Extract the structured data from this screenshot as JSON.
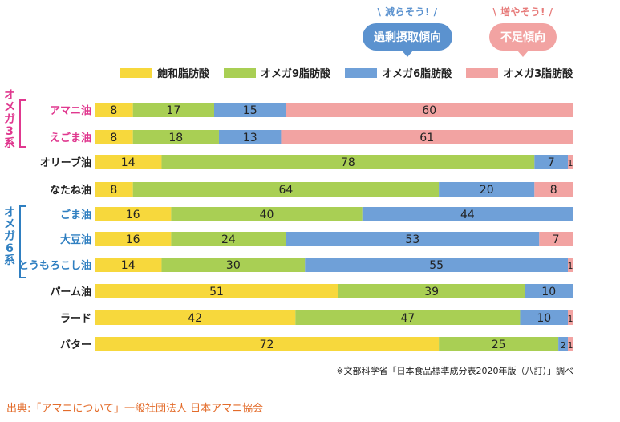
{
  "bubbles": {
    "left": {
      "caption": "減らそう!",
      "label": "過剰摂取傾向",
      "color": "#5b92cf"
    },
    "right": {
      "caption": "増やそう!",
      "label": "不足傾向",
      "color": "#f2a3a2"
    }
  },
  "groups": {
    "omega3": {
      "label": "オメガ3系",
      "color": "#e0388f"
    },
    "omega6": {
      "label": "オメガ6系",
      "color": "#2f7fc1"
    }
  },
  "footnote": "※文部科学省「日本食品標準成分表2020年版（八訂）」調べ",
  "source": "出典:「アマニについて」一般社団法人 日本アマニ協会",
  "chart_data": {
    "type": "bar",
    "orientation": "horizontal",
    "stacked": true,
    "unit": "%",
    "categories": [
      "アマニ油",
      "えごま油",
      "オリーブ油",
      "なたね油",
      "ごま油",
      "大豆油",
      "とうもろこし油",
      "パーム油",
      "ラード",
      "バター"
    ],
    "category_colors": [
      "#e0388f",
      "#e0388f",
      "#222222",
      "#222222",
      "#2f7fc1",
      "#2f7fc1",
      "#2f7fc1",
      "#222222",
      "#222222",
      "#222222"
    ],
    "series": [
      {
        "name": "飽和脂肪酸",
        "color": "#f7d83c",
        "values": [
          8,
          8,
          14,
          8,
          16,
          16,
          14,
          51,
          42,
          72
        ]
      },
      {
        "name": "オメガ9脂肪酸",
        "color": "#a9cf54",
        "values": [
          17,
          18,
          78,
          64,
          40,
          24,
          30,
          39,
          47,
          25
        ]
      },
      {
        "name": "オメガ6脂肪酸",
        "color": "#6fa0d8",
        "values": [
          15,
          13,
          7,
          20,
          44,
          53,
          55,
          10,
          10,
          2
        ]
      },
      {
        "name": "オメガ3脂肪酸",
        "color": "#f2a3a2",
        "values": [
          60,
          61,
          1,
          8,
          0,
          7,
          1,
          0,
          1,
          1
        ]
      }
    ],
    "xlim": [
      0,
      100
    ],
    "legend_position": "top"
  }
}
